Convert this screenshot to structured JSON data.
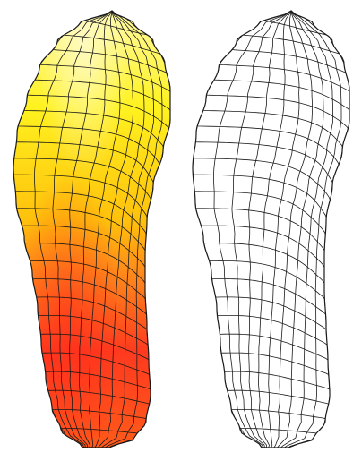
{
  "figure": {
    "panels": [
      {
        "id": "colored",
        "style": "heatmap"
      },
      {
        "id": "outline",
        "style": "wireframe"
      }
    ],
    "colors": {
      "background": "#ffffff",
      "mesh_line": "#1a1a1a",
      "gradient": [
        "#fffaa0",
        "#fff21f",
        "#ffc10c",
        "#ff8a1a",
        "#ff3a1f"
      ]
    },
    "mesh": {
      "columns": 10,
      "rows": 26
    }
  }
}
